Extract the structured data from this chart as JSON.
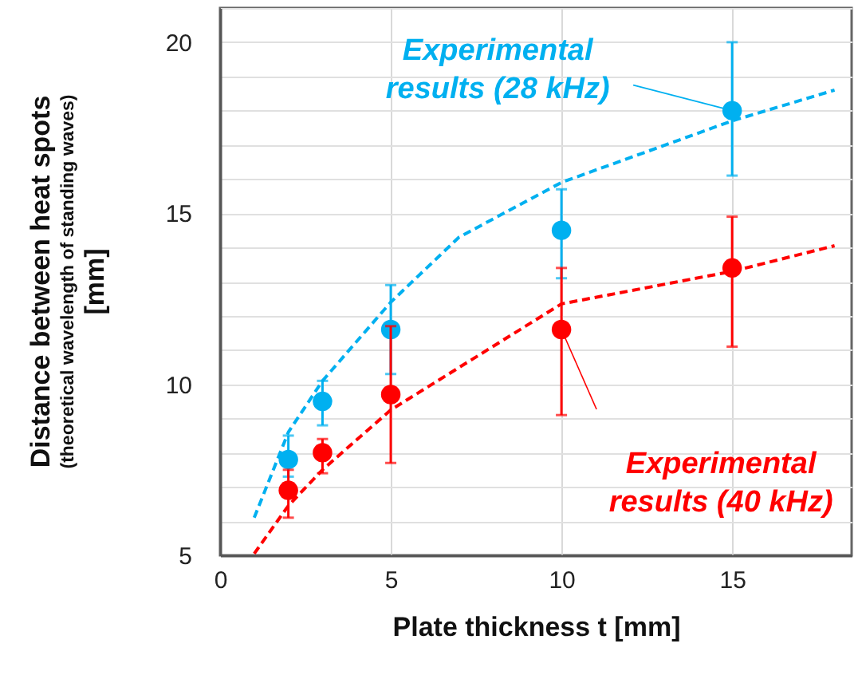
{
  "chart_data": {
    "type": "scatter",
    "xlabel": "Plate thickness t  [mm]",
    "ylabel": "Distance between heat spots\n(theoretical wavelength of standing waves)\n[mm]",
    "xlim": [
      0,
      18.5
    ],
    "ylim": [
      5,
      21
    ],
    "xticks": [
      0,
      5,
      10,
      15
    ],
    "yticks": [
      5,
      {
        "value": 6,
        "label": null
      },
      {
        "value": 7,
        "label": null
      },
      {
        "value": 8,
        "label": null
      },
      {
        "value": 9,
        "label": null
      },
      10,
      {
        "value": 11,
        "label": null
      },
      {
        "value": 12,
        "label": null
      },
      {
        "value": 13,
        "label": null
      },
      {
        "value": 14,
        "label": null
      },
      15,
      {
        "value": 16,
        "label": null
      },
      {
        "value": 17,
        "label": null
      },
      {
        "value": 18,
        "label": null
      },
      {
        "value": 19,
        "label": null
      },
      20,
      {
        "value": 21,
        "label": null
      }
    ],
    "grid": true,
    "marker": "circle",
    "series": [
      {
        "name": "Experimental results (28 kHz)",
        "color": "#00b0f0",
        "x": [
          2,
          3,
          5,
          10,
          15
        ],
        "values": [
          7.8,
          9.5,
          11.6,
          14.5,
          18.0
        ],
        "errors": [
          [
            7.3,
            8.5
          ],
          [
            8.8,
            10.1
          ],
          [
            10.3,
            12.9
          ],
          [
            13.1,
            15.7
          ],
          [
            16.1,
            20.0
          ]
        ]
      },
      {
        "name": "Experimental results (40 kHz)",
        "color": "#ff0000",
        "x": [
          2,
          3,
          5,
          10,
          15
        ],
        "values": [
          6.9,
          8.0,
          9.7,
          11.6,
          13.4
        ],
        "errors": [
          [
            6.1,
            7.5
          ],
          [
            7.4,
            8.4
          ],
          [
            7.7,
            11.7
          ],
          [
            9.1,
            13.4
          ],
          [
            11.1,
            14.9
          ]
        ]
      },
      {
        "type": "line",
        "line_style": "dashed",
        "marker": "none",
        "color": "#00b0f0",
        "x": [
          1,
          2,
          3,
          5,
          7,
          10,
          15,
          18
        ],
        "values": [
          6.1,
          8.6,
          10.1,
          12.4,
          14.3,
          15.9,
          17.7,
          18.6
        ]
      },
      {
        "type": "line",
        "line_style": "dashed",
        "marker": "none",
        "color": "#ff0000",
        "x": [
          1,
          2,
          3,
          5,
          10,
          15,
          18
        ],
        "values": [
          5.05,
          6.45,
          7.5,
          9.25,
          12.35,
          13.3,
          14.05
        ]
      }
    ]
  }
}
